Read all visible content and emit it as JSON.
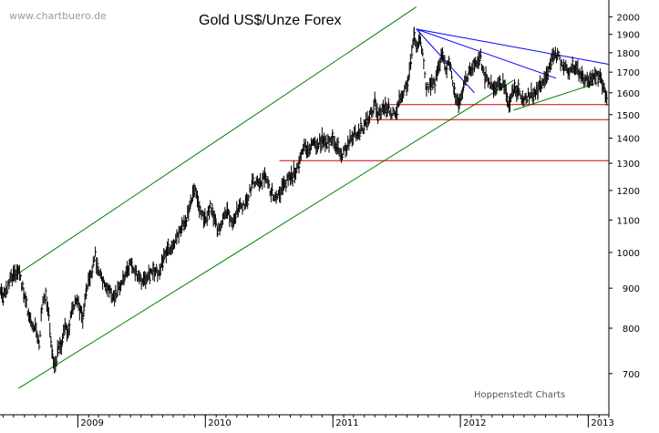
{
  "chart_data": {
    "type": "line",
    "style": "ohlc-bars",
    "title": "Gold US$/Unze Forex",
    "watermark": "www.chartbuero.de",
    "credit": "Hoppenstedt Charts",
    "y_scale": "log",
    "ylim": [
      620,
      2080
    ],
    "y_ticks": [
      700,
      800,
      900,
      1000,
      1100,
      1200,
      1300,
      1400,
      1500,
      1600,
      1700,
      1800,
      1900,
      2000
    ],
    "x_range": [
      "2008-04-01",
      "2013-03-01"
    ],
    "x_ticks": [
      {
        "label": "2009",
        "date": "2009-01-01"
      },
      {
        "label": "2010",
        "date": "2010-01-01"
      },
      {
        "label": "2011",
        "date": "2011-01-01"
      },
      {
        "label": "2012",
        "date": "2012-01-01"
      },
      {
        "label": "2013",
        "date": "2013-01-01"
      }
    ],
    "series": [
      {
        "points": [
          [
            "2008-04-01",
            920
          ],
          [
            "2008-04-15",
            900
          ],
          [
            "2008-05-01",
            870
          ],
          [
            "2008-05-15",
            895
          ],
          [
            "2008-06-01",
            880
          ],
          [
            "2008-06-15",
            910
          ],
          [
            "2008-07-01",
            940
          ],
          [
            "2008-07-15",
            950
          ],
          [
            "2008-08-01",
            880
          ],
          [
            "2008-08-10",
            840
          ],
          [
            "2008-08-20",
            810
          ],
          [
            "2008-09-01",
            800
          ],
          [
            "2008-09-12",
            760
          ],
          [
            "2008-09-20",
            850
          ],
          [
            "2008-10-01",
            880
          ],
          [
            "2008-10-10",
            830
          ],
          [
            "2008-10-20",
            740
          ],
          [
            "2008-10-26",
            710
          ],
          [
            "2008-11-05",
            750
          ],
          [
            "2008-11-15",
            760
          ],
          [
            "2008-11-25",
            800
          ],
          [
            "2008-12-05",
            790
          ],
          [
            "2008-12-15",
            850
          ],
          [
            "2008-12-31",
            870
          ],
          [
            "2009-01-15",
            820
          ],
          [
            "2009-01-25",
            900
          ],
          [
            "2009-02-05",
            920
          ],
          [
            "2009-02-20",
            990
          ],
          [
            "2009-03-01",
            940
          ],
          [
            "2009-03-15",
            920
          ],
          [
            "2009-04-01",
            900
          ],
          [
            "2009-04-10",
            880
          ],
          [
            "2009-04-25",
            890
          ],
          [
            "2009-05-10",
            920
          ],
          [
            "2009-05-25",
            950
          ],
          [
            "2009-06-05",
            970
          ],
          [
            "2009-06-20",
            930
          ],
          [
            "2009-07-05",
            920
          ],
          [
            "2009-07-20",
            940
          ],
          [
            "2009-08-05",
            950
          ],
          [
            "2009-08-20",
            940
          ],
          [
            "2009-09-05",
            990
          ],
          [
            "2009-09-20",
            1010
          ],
          [
            "2009-10-05",
            1030
          ],
          [
            "2009-10-20",
            1060
          ],
          [
            "2009-11-05",
            1090
          ],
          [
            "2009-11-20",
            1150
          ],
          [
            "2009-12-03",
            1210
          ],
          [
            "2009-12-15",
            1130
          ],
          [
            "2009-12-31",
            1100
          ],
          [
            "2010-01-15",
            1140
          ],
          [
            "2010-02-01",
            1080
          ],
          [
            "2010-02-05",
            1060
          ],
          [
            "2010-02-20",
            1110
          ],
          [
            "2010-03-05",
            1130
          ],
          [
            "2010-03-20",
            1100
          ],
          [
            "2010-04-05",
            1140
          ],
          [
            "2010-04-20",
            1150
          ],
          [
            "2010-05-05",
            1180
          ],
          [
            "2010-05-15",
            1230
          ],
          [
            "2010-06-01",
            1220
          ],
          [
            "2010-06-20",
            1250
          ],
          [
            "2010-07-05",
            1200
          ],
          [
            "2010-07-20",
            1180
          ],
          [
            "2010-08-05",
            1200
          ],
          [
            "2010-08-20",
            1230
          ],
          [
            "2010-09-05",
            1250
          ],
          [
            "2010-09-20",
            1280
          ],
          [
            "2010-10-05",
            1340
          ],
          [
            "2010-10-15",
            1370
          ],
          [
            "2010-10-25",
            1340
          ],
          [
            "2010-11-05",
            1390
          ],
          [
            "2010-11-15",
            1360
          ],
          [
            "2010-12-01",
            1400
          ],
          [
            "2010-12-15",
            1380
          ],
          [
            "2010-12-31",
            1410
          ],
          [
            "2011-01-10",
            1370
          ],
          [
            "2011-01-25",
            1330
          ],
          [
            "2011-02-10",
            1360
          ],
          [
            "2011-02-25",
            1410
          ],
          [
            "2011-03-10",
            1420
          ],
          [
            "2011-03-25",
            1440
          ],
          [
            "2011-04-10",
            1470
          ],
          [
            "2011-04-25",
            1520
          ],
          [
            "2011-05-02",
            1560
          ],
          [
            "2011-05-10",
            1490
          ],
          [
            "2011-05-25",
            1530
          ],
          [
            "2011-06-10",
            1530
          ],
          [
            "2011-06-25",
            1500
          ],
          [
            "2011-07-10",
            1560
          ],
          [
            "2011-07-25",
            1620
          ],
          [
            "2011-08-05",
            1660
          ],
          [
            "2011-08-12",
            1750
          ],
          [
            "2011-08-22",
            1880
          ],
          [
            "2011-09-01",
            1830
          ],
          [
            "2011-09-06",
            1900
          ],
          [
            "2011-09-15",
            1780
          ],
          [
            "2011-09-26",
            1620
          ],
          [
            "2011-10-05",
            1640
          ],
          [
            "2011-10-20",
            1650
          ],
          [
            "2011-11-01",
            1730
          ],
          [
            "2011-11-08",
            1790
          ],
          [
            "2011-11-20",
            1720
          ],
          [
            "2011-12-01",
            1750
          ],
          [
            "2011-12-15",
            1600
          ],
          [
            "2011-12-29",
            1540
          ],
          [
            "2012-01-10",
            1630
          ],
          [
            "2012-01-25",
            1700
          ],
          [
            "2012-02-10",
            1740
          ],
          [
            "2012-02-28",
            1780
          ],
          [
            "2012-03-05",
            1700
          ],
          [
            "2012-03-20",
            1650
          ],
          [
            "2012-04-05",
            1630
          ],
          [
            "2012-04-20",
            1650
          ],
          [
            "2012-05-05",
            1640
          ],
          [
            "2012-05-16",
            1540
          ],
          [
            "2012-06-01",
            1610
          ],
          [
            "2012-06-15",
            1620
          ],
          [
            "2012-06-28",
            1560
          ],
          [
            "2012-07-10",
            1580
          ],
          [
            "2012-07-25",
            1600
          ],
          [
            "2012-08-10",
            1610
          ],
          [
            "2012-08-25",
            1660
          ],
          [
            "2012-09-05",
            1700
          ],
          [
            "2012-09-20",
            1770
          ],
          [
            "2012-10-05",
            1790
          ],
          [
            "2012-10-20",
            1730
          ],
          [
            "2012-11-05",
            1710
          ],
          [
            "2012-11-20",
            1730
          ],
          [
            "2012-12-05",
            1700
          ],
          [
            "2012-12-20",
            1660
          ],
          [
            "2013-01-05",
            1650
          ],
          [
            "2013-01-20",
            1690
          ],
          [
            "2013-02-01",
            1670
          ],
          [
            "2013-02-10",
            1650
          ],
          [
            "2013-02-20",
            1590
          ],
          [
            "2013-02-26",
            1590
          ]
        ],
        "color": "#000000"
      }
    ],
    "trendlines": [
      {
        "color": "#008000",
        "points": [
          [
            "2008-07-15",
            940
          ],
          [
            "2011-08-28",
            2060
          ]
        ]
      },
      {
        "color": "#008000",
        "points": [
          [
            "2008-07-15",
            670
          ],
          [
            "2012-06-01",
            1660
          ]
        ]
      },
      {
        "color": "#008000",
        "points": [
          [
            "2012-06-01",
            1520
          ],
          [
            "2013-02-01",
            1650
          ]
        ]
      },
      {
        "color": "#0000ff",
        "points": [
          [
            "2011-08-28",
            1930
          ],
          [
            "2013-02-28",
            1740
          ]
        ]
      },
      {
        "color": "#0000ff",
        "points": [
          [
            "2011-08-28",
            1930
          ],
          [
            "2012-10-01",
            1670
          ]
        ]
      },
      {
        "color": "#0000ff",
        "points": [
          [
            "2011-08-28",
            1930
          ],
          [
            "2012-02-10",
            1600
          ]
        ]
      }
    ],
    "hlines": [
      {
        "y": 1545,
        "from": "2011-05-20",
        "color": "#cc0000"
      },
      {
        "y": 1478,
        "from": "2011-04-01",
        "color": "#cc0000"
      },
      {
        "y": 1310,
        "from": "2010-08-01",
        "color": "#cc0000"
      }
    ],
    "grid": false,
    "legend": "none"
  }
}
